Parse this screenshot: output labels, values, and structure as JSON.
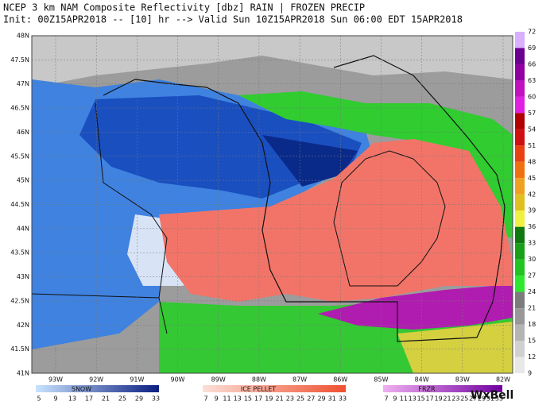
{
  "header": {
    "line1": "NCEP 3 km NAM Composite Reflectivity [dbz]  RAIN | FROZEN PRECIP",
    "line2": "Init: 00Z15APR2018 -- [10] hr --> Valid Sun 10Z15APR2018      Sun 06:00 EDT 15APR2018"
  },
  "lat_labels": [
    "48N",
    "47.5N",
    "47N",
    "46.5N",
    "46N",
    "45.5N",
    "45N",
    "44.5N",
    "44N",
    "43.5N",
    "43N",
    "42.5N",
    "42N",
    "41.5N",
    "41N"
  ],
  "lon_labels": [
    "93W",
    "92W",
    "91W",
    "90W",
    "89W",
    "88W",
    "87W",
    "86W",
    "85W",
    "84W",
    "83W",
    "82W"
  ],
  "colorbar": {
    "ticks": [
      72,
      69,
      66,
      63,
      60,
      57,
      54,
      51,
      48,
      45,
      42,
      39,
      36,
      33,
      30,
      27,
      24,
      21,
      18,
      15,
      12,
      9
    ]
  },
  "legends": [
    {
      "title": "SNOW",
      "ticks": [
        5,
        9,
        13,
        17,
        21,
        25,
        29,
        33
      ]
    },
    {
      "title": "ICE PELLET",
      "ticks": [
        7,
        9,
        11,
        13,
        15,
        17,
        19,
        21,
        23,
        25,
        27,
        29,
        31,
        33
      ]
    },
    {
      "title": "FRZR",
      "ticks": [
        7,
        9,
        11,
        13,
        15,
        17,
        19,
        21,
        23,
        25,
        27,
        29,
        31,
        33
      ]
    }
  ],
  "watermark": "WxBell"
}
